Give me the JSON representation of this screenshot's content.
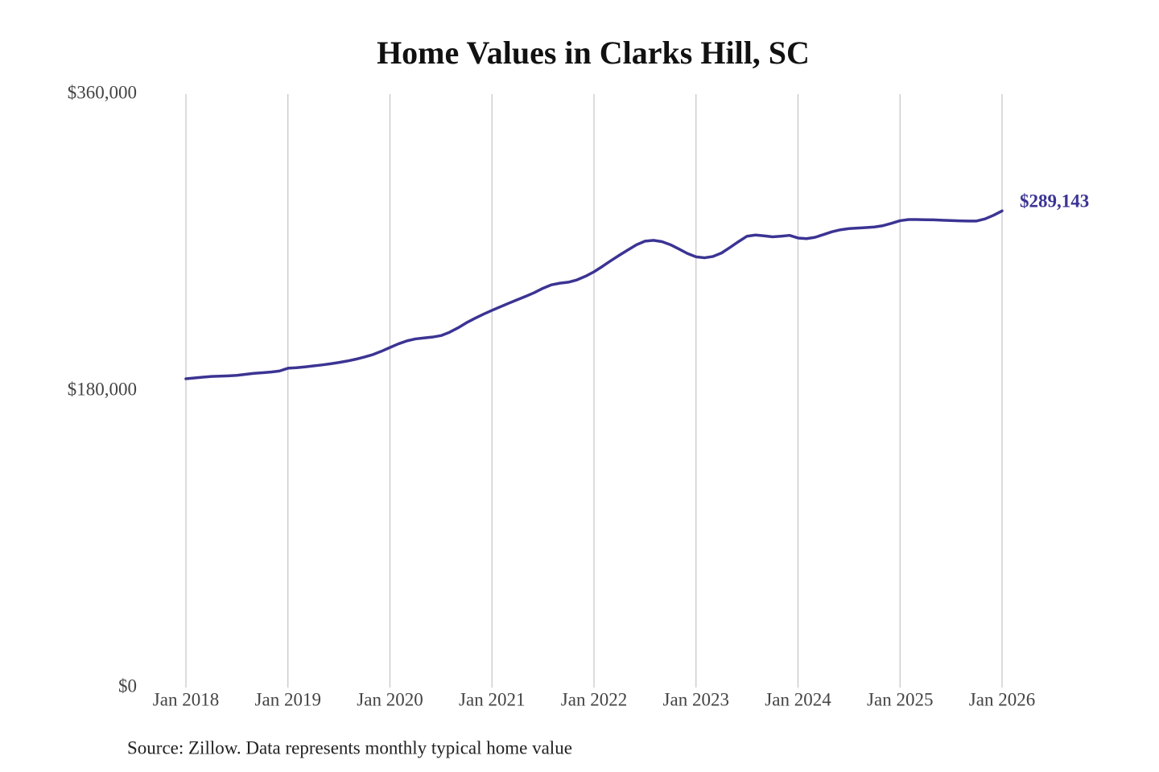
{
  "chart_data": {
    "type": "line",
    "title": "Home Values in Clarks Hill, SC",
    "source": "Source: Zillow. Data represents monthly typical home value",
    "x": [
      "2018-01",
      "2018-02",
      "2018-03",
      "2018-04",
      "2018-05",
      "2018-06",
      "2018-07",
      "2018-08",
      "2018-09",
      "2018-10",
      "2018-11",
      "2018-12",
      "2019-01",
      "2019-02",
      "2019-03",
      "2019-04",
      "2019-05",
      "2019-06",
      "2019-07",
      "2019-08",
      "2019-09",
      "2019-10",
      "2019-11",
      "2019-12",
      "2020-01",
      "2020-02",
      "2020-03",
      "2020-04",
      "2020-05",
      "2020-06",
      "2020-07",
      "2020-08",
      "2020-09",
      "2020-10",
      "2020-11",
      "2020-12",
      "2021-01",
      "2021-02",
      "2021-03",
      "2021-04",
      "2021-05",
      "2021-06",
      "2021-07",
      "2021-08",
      "2021-09",
      "2021-10",
      "2021-11",
      "2021-12",
      "2022-01",
      "2022-02",
      "2022-03",
      "2022-04",
      "2022-05",
      "2022-06",
      "2022-07",
      "2022-08",
      "2022-09",
      "2022-10",
      "2022-11",
      "2022-12",
      "2023-01",
      "2023-02",
      "2023-03",
      "2023-04",
      "2023-05",
      "2023-06",
      "2023-07",
      "2023-08",
      "2023-09",
      "2023-10",
      "2023-11",
      "2023-12",
      "2024-01",
      "2024-02",
      "2024-03",
      "2024-04",
      "2024-05",
      "2024-06",
      "2024-07",
      "2024-08",
      "2024-09",
      "2024-10",
      "2024-11",
      "2024-12",
      "2025-01",
      "2025-02",
      "2025-03",
      "2025-04",
      "2025-05",
      "2025-06",
      "2025-07",
      "2025-08",
      "2025-09",
      "2025-10",
      "2025-11",
      "2025-12",
      "2026-01"
    ],
    "series": [
      {
        "color": "#3b3493",
        "values": [
          187300,
          187800,
          188300,
          188700,
          188900,
          189100,
          189400,
          190000,
          190600,
          191000,
          191400,
          192000,
          193700,
          194000,
          194500,
          195100,
          195700,
          196400,
          197200,
          198100,
          199200,
          200500,
          202000,
          204000,
          206300,
          208500,
          210300,
          211500,
          212100,
          212600,
          213500,
          215500,
          218200,
          221300,
          224000,
          226500,
          228800,
          231000,
          233200,
          235300,
          237400,
          239600,
          242200,
          244300,
          245300,
          245900,
          247300,
          249500,
          252200,
          255500,
          259000,
          262300,
          265500,
          268600,
          270800,
          271300,
          270500,
          268600,
          266000,
          263300,
          261300,
          260700,
          261500,
          263600,
          267000,
          270500,
          273800,
          274500,
          274000,
          273400,
          273800,
          274300,
          272700,
          272300,
          273100,
          274800,
          276500,
          277700,
          278400,
          278700,
          279000,
          279400,
          280200,
          281600,
          283200,
          283900,
          283900,
          283800,
          283700,
          283500,
          283300,
          283100,
          283000,
          283000,
          284300,
          286500,
          289143
        ],
        "value_labels": [
          null,
          null,
          null,
          null,
          null,
          null,
          null,
          null,
          null,
          null,
          null,
          null,
          null,
          null,
          null,
          null,
          null,
          null,
          null,
          null,
          null,
          null,
          null,
          null,
          null,
          null,
          null,
          null,
          null,
          null,
          null,
          null,
          null,
          null,
          null,
          null,
          null,
          null,
          null,
          null,
          null,
          null,
          null,
          null,
          null,
          null,
          null,
          null,
          null,
          null,
          null,
          null,
          null,
          null,
          null,
          null,
          null,
          null,
          null,
          null,
          null,
          null,
          null,
          null,
          null,
          null,
          null,
          null,
          null,
          null,
          null,
          null,
          null,
          null,
          null,
          null,
          null,
          null,
          null,
          null,
          null,
          null,
          null,
          null,
          null,
          null,
          null,
          null,
          null,
          null,
          null,
          null,
          null,
          null,
          null,
          null,
          "$289,143"
        ]
      }
    ],
    "xlim": [
      "2018-01",
      "2026-01"
    ],
    "xticks": [
      {
        "value": "2018-01",
        "label": "Jan 2018"
      },
      {
        "value": "2019-01",
        "label": "Jan 2019"
      },
      {
        "value": "2020-01",
        "label": "Jan 2020"
      },
      {
        "value": "2021-01",
        "label": "Jan 2021"
      },
      {
        "value": "2022-01",
        "label": "Jan 2022"
      },
      {
        "value": "2023-01",
        "label": "Jan 2023"
      },
      {
        "value": "2024-01",
        "label": "Jan 2024"
      },
      {
        "value": "2025-01",
        "label": "Jan 2025"
      },
      {
        "value": "2026-01",
        "label": "Jan 2026"
      }
    ],
    "ylim": [
      0,
      360000
    ],
    "yticks": [
      {
        "value": 0,
        "label": "$0"
      },
      {
        "value": 180000,
        "label": "$180,000"
      },
      {
        "value": 360000,
        "label": "$360,000"
      }
    ],
    "grid": "x"
  }
}
